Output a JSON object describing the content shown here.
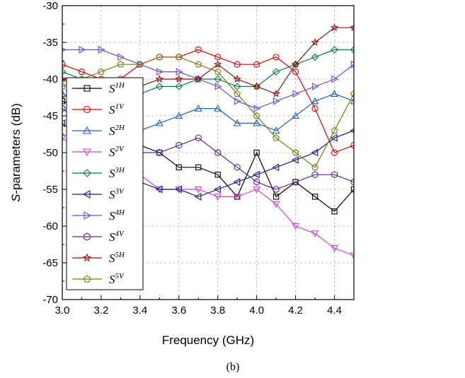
{
  "caption": "(b)",
  "chart_data": {
    "type": "line",
    "xlabel": "Frequency (GHz)",
    "ylabel_italic": "S",
    "ylabel_rest": "-parameters (dB)",
    "xlim": [
      3.0,
      4.5
    ],
    "ylim": [
      -70,
      -30
    ],
    "xticks": [
      "3.0",
      "3.2",
      "3.4",
      "3.6",
      "3.8",
      "4.0",
      "4.2",
      "4.4"
    ],
    "yticks": [
      "-70",
      "-65",
      "-60",
      "-55",
      "-50",
      "-45",
      "-40",
      "-35",
      "-30"
    ],
    "grid": true,
    "legend_position": "left",
    "series": [
      {
        "base": "S",
        "sup": "1H",
        "color": "#000000",
        "marker": "square",
        "x": [
          3.0,
          3.1,
          3.2,
          3.3,
          3.4,
          3.5,
          3.6,
          3.7,
          3.8,
          3.9,
          4.0,
          4.1,
          4.2,
          4.3,
          4.4,
          4.5
        ],
        "y": [
          -43,
          -44,
          -45,
          -47,
          -49,
          -50,
          -52,
          -52,
          -53,
          -56,
          -50,
          -56,
          -54,
          -56,
          -58,
          -55
        ]
      },
      {
        "base": "S",
        "sup": "1V",
        "color": "#e00000",
        "marker": "circle",
        "x": [
          3.0,
          3.1,
          3.2,
          3.3,
          3.4,
          3.5,
          3.6,
          3.7,
          3.8,
          3.9,
          4.0,
          4.1,
          4.2,
          4.3,
          4.4,
          4.5
        ],
        "y": [
          -38,
          -39,
          -40,
          -40,
          -38,
          -37,
          -37,
          -36,
          -37,
          -38,
          -38,
          -37,
          -39,
          -44,
          -50,
          -49
        ]
      },
      {
        "base": "S",
        "sup": "2H",
        "color": "#1f5fbf",
        "marker": "triangle-up",
        "x": [
          3.0,
          3.1,
          3.2,
          3.3,
          3.4,
          3.5,
          3.6,
          3.7,
          3.8,
          3.9,
          4.0,
          4.1,
          4.2,
          4.3,
          4.4,
          4.5
        ],
        "y": [
          -42,
          -43,
          -44,
          -46,
          -47,
          -46,
          -45,
          -44,
          -44,
          -46,
          -46,
          -47,
          -45,
          -43,
          -42,
          -43
        ]
      },
      {
        "base": "S",
        "sup": "2V",
        "color": "#cc44cc",
        "marker": "triangle-down",
        "x": [
          3.0,
          3.1,
          3.2,
          3.3,
          3.4,
          3.5,
          3.6,
          3.7,
          3.8,
          3.9,
          4.0,
          4.1,
          4.2,
          4.3,
          4.4,
          4.5
        ],
        "y": [
          -48,
          -50,
          -51,
          -52,
          -53,
          -55,
          -55,
          -55,
          -56,
          -56,
          -55,
          -57,
          -60,
          -61,
          -63,
          -64
        ]
      },
      {
        "base": "S",
        "sup": "3H",
        "color": "#007f3f",
        "marker": "diamond",
        "x": [
          3.0,
          3.1,
          3.2,
          3.3,
          3.4,
          3.5,
          3.6,
          3.7,
          3.8,
          3.9,
          4.0,
          4.1,
          4.2,
          4.3,
          4.4,
          4.5
        ],
        "y": [
          -39,
          -40,
          -41,
          -42,
          -42,
          -41,
          -41,
          -40,
          -40,
          -41,
          -41,
          -39,
          -38,
          -37,
          -36,
          -36
        ]
      },
      {
        "base": "S",
        "sup": "3V",
        "color": "#1a1a7a",
        "marker": "triangle-left",
        "x": [
          3.0,
          3.1,
          3.2,
          3.3,
          3.4,
          3.5,
          3.6,
          3.7,
          3.8,
          3.9,
          4.0,
          4.1,
          4.2,
          4.3,
          4.4,
          4.5
        ],
        "y": [
          -46,
          -48,
          -50,
          -52,
          -54,
          -55,
          -55,
          -56,
          -55,
          -54,
          -53,
          -52,
          -51,
          -50,
          -48,
          -47
        ]
      },
      {
        "base": "S",
        "sup": "4H",
        "color": "#6a4fd0",
        "marker": "triangle-right",
        "x": [
          3.0,
          3.1,
          3.2,
          3.3,
          3.4,
          3.5,
          3.6,
          3.7,
          3.8,
          3.9,
          4.0,
          4.1,
          4.2,
          4.3,
          4.4,
          4.5
        ],
        "y": [
          -36,
          -36,
          -36,
          -37,
          -38,
          -39,
          -39,
          -40,
          -41,
          -43,
          -44,
          -43,
          -42,
          -41,
          -40,
          -38
        ]
      },
      {
        "base": "S",
        "sup": "4V",
        "color": "#5a2a8a",
        "marker": "hexagon",
        "x": [
          3.0,
          3.1,
          3.2,
          3.3,
          3.4,
          3.5,
          3.6,
          3.7,
          3.8,
          3.9,
          4.0,
          4.1,
          4.2,
          4.3,
          4.4,
          4.5
        ],
        "y": [
          -44,
          -46,
          -48,
          -49,
          -50,
          -50,
          -49,
          -48,
          -50,
          -52,
          -54,
          -55,
          -54,
          -53,
          -53,
          -54
        ]
      },
      {
        "base": "S",
        "sup": "5H",
        "color": "#8b1010",
        "marker": "star",
        "x": [
          3.0,
          3.1,
          3.2,
          3.3,
          3.4,
          3.5,
          3.6,
          3.7,
          3.8,
          3.9,
          4.0,
          4.1,
          4.2,
          4.3,
          4.4,
          4.5
        ],
        "y": [
          -40,
          -41,
          -42,
          -42,
          -41,
          -40,
          -40,
          -40,
          -38,
          -40,
          -41,
          -42,
          -38,
          -35,
          -33,
          -33
        ]
      },
      {
        "base": "S",
        "sup": "5V",
        "color": "#7a7a10",
        "marker": "pentagon",
        "x": [
          3.0,
          3.1,
          3.2,
          3.3,
          3.4,
          3.5,
          3.6,
          3.7,
          3.8,
          3.9,
          4.0,
          4.1,
          4.2,
          4.3,
          4.4,
          4.5
        ],
        "y": [
          -41,
          -40,
          -39,
          -38,
          -38,
          -37,
          -37,
          -38,
          -39,
          -42,
          -45,
          -48,
          -50,
          -52,
          -47,
          -42
        ]
      }
    ]
  }
}
